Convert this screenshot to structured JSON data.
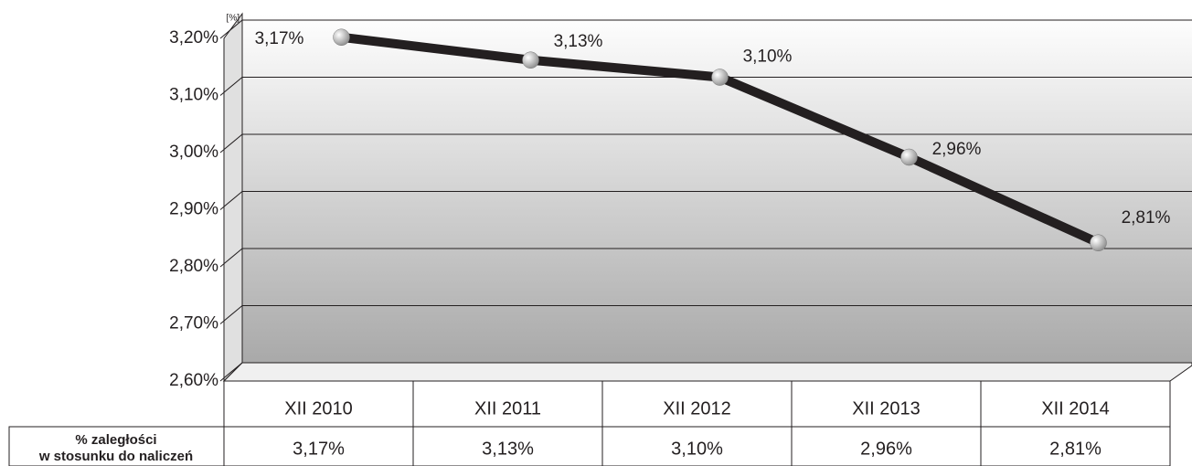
{
  "chart_data": {
    "type": "line",
    "unit_label": "[%]",
    "categories": [
      "XII 2010",
      "XII 2011",
      "XII 2012",
      "XII 2013",
      "XII 2014"
    ],
    "values": [
      3.17,
      3.13,
      3.1,
      2.96,
      2.81
    ],
    "value_labels": [
      "3,17%",
      "3,13%",
      "3,10%",
      "2,96%",
      "2,81%"
    ],
    "row_label": [
      "% zaległości",
      "w stosunku do naliczeń"
    ],
    "color": "#231f20",
    "ylim": [
      2.6,
      3.2
    ],
    "yticks": [
      {
        "value": 2.6,
        "label": "2,60%"
      },
      {
        "value": 2.7,
        "label": "2,70%"
      },
      {
        "value": 2.8,
        "label": "2,80%"
      },
      {
        "value": 2.9,
        "label": "2,90%"
      },
      {
        "value": 3.0,
        "label": "3,00%"
      },
      {
        "value": 3.1,
        "label": "3,10%"
      },
      {
        "value": 3.2,
        "label": "3,20%"
      }
    ],
    "grid": true
  }
}
